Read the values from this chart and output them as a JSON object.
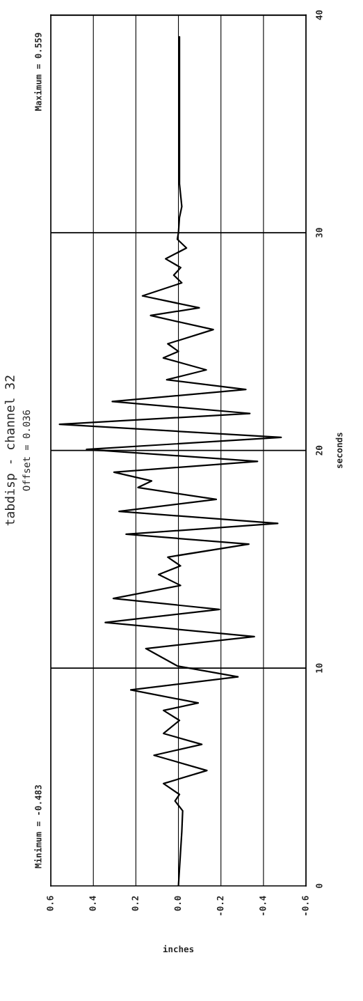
{
  "chart_data": {
    "type": "line",
    "title": "tabdisp - channel 32",
    "subtitle": "Offset = 0.036",
    "xlabel": "inches",
    "ylabel": "seconds",
    "annotations": [
      "Minimum = -0.483",
      "Maximum = 0.559"
    ],
    "series": [
      {
        "color": "#000000",
        "x": [
          0.0,
          -0.016,
          -0.02,
          0.016,
          -0.005,
          0.07,
          -0.134,
          0.115,
          -0.11,
          0.07,
          -0.005,
          0.07,
          -0.093,
          0.224,
          -0.28,
          0.005,
          0.153,
          -0.357,
          0.344,
          -0.193,
          0.306,
          -0.01,
          0.093,
          -0.01,
          0.05,
          -0.331,
          0.246,
          -0.467,
          0.279,
          -0.178,
          0.19,
          0.126,
          0.303,
          -0.372,
          0.432,
          -0.483,
          0.559,
          -0.336,
          0.311,
          -0.317,
          0.055,
          -0.131,
          0.071,
          0.0,
          0.05,
          -0.164,
          0.131,
          -0.098,
          0.169,
          -0.016,
          0.022,
          -0.011,
          0.06,
          -0.038,
          0.005,
          0.0,
          -0.005,
          -0.016,
          -0.005,
          -0.005
        ],
        "values": [
          0,
          2.5,
          3.45,
          3.9,
          4.2,
          4.7,
          5.3,
          6.0,
          6.5,
          7.0,
          7.6,
          8.06,
          8.4,
          9.0,
          9.6,
          10.1,
          10.9,
          11.45,
          12.1,
          12.7,
          13.2,
          13.8,
          14.3,
          14.7,
          15.1,
          15.7,
          16.15,
          16.65,
          17.2,
          17.75,
          18.3,
          18.6,
          19.0,
          19.5,
          20.05,
          20.6,
          21.2,
          21.7,
          22.25,
          22.8,
          23.25,
          23.7,
          24.25,
          24.55,
          24.9,
          25.55,
          26.2,
          26.55,
          27.1,
          27.7,
          28.05,
          28.4,
          28.8,
          29.3,
          29.7,
          30.0,
          30.7,
          31.2,
          32.25,
          39
        ]
      }
    ],
    "xlim": [
      0.6,
      -0.6
    ],
    "xticks": [
      0.6,
      0.4,
      0.2,
      {
        "value": 0,
        "label": "0.0"
      },
      -0.2,
      -0.4,
      -0.6
    ],
    "ylim": [
      0,
      40
    ],
    "yticks": [
      0,
      10,
      20,
      30,
      40
    ],
    "grid": true,
    "line_style": "solid",
    "marker": "none"
  }
}
